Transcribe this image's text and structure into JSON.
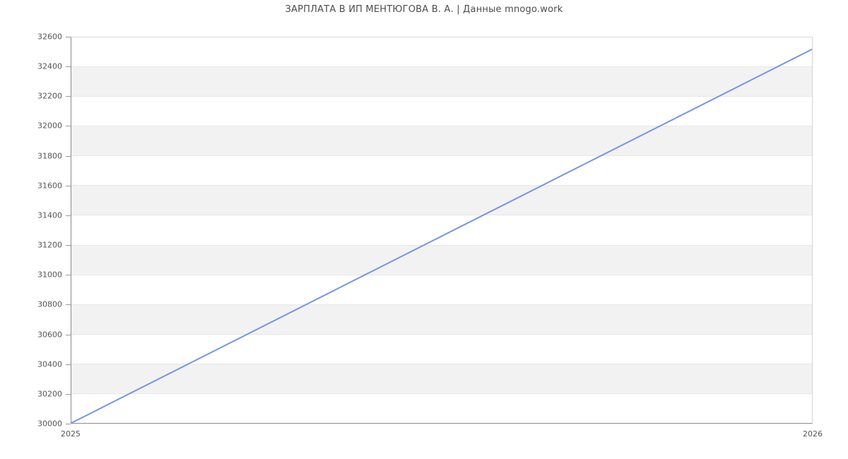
{
  "chart_data": {
    "type": "line",
    "title": "ЗАРПЛАТА В ИП МЕНТЮГОВА В. А. | Данные mnogo.work",
    "x": [
      2025,
      2026
    ],
    "values": [
      30000,
      32520
    ],
    "xticks": [
      {
        "value": 2025,
        "label": "2025"
      },
      {
        "value": 2026,
        "label": "2026"
      }
    ],
    "yticks": [
      "30000",
      "30200",
      "30400",
      "30600",
      "30800",
      "31000",
      "31200",
      "31400",
      "31600",
      "31800",
      "32000",
      "32200",
      "32400",
      "32600"
    ],
    "xlim": [
      2025,
      2026
    ],
    "ylim": [
      30000,
      32600
    ],
    "xlabel": "",
    "ylabel": "",
    "legend": false,
    "markers": false,
    "grid": "alternating horizontal bands, gray stripes between odd tick pairs",
    "colors": {
      "line": "#7297e4",
      "band_fill": "#f2f2f2",
      "gridline": "#e7e7e7",
      "axis": "#8c8c8c",
      "plot_border_light": "#d9d9d9",
      "tick_text": "#555555",
      "title_text": "#4c4c4c",
      "background": "#ffffff"
    }
  }
}
